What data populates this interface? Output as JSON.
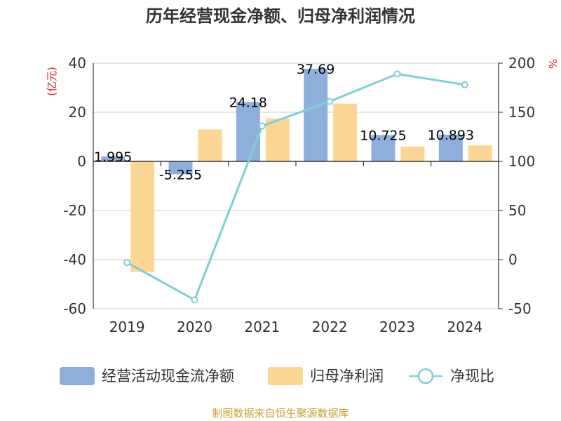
{
  "chart_data": {
    "type": "bar",
    "title": "历年经营现金净额、归母净利润情况",
    "categories": [
      "2019",
      "2020",
      "2021",
      "2022",
      "2023",
      "2024"
    ],
    "left_axis": {
      "unit": "(亿元)",
      "min": -60,
      "max": 40,
      "ticks": [
        "40",
        "20",
        "0",
        "-20",
        "-40",
        "-60"
      ]
    },
    "right_axis": {
      "unit": "%",
      "min": -50,
      "max": 200,
      "ticks": [
        "200",
        "150",
        "100",
        "50",
        "0",
        "-50"
      ]
    },
    "series": [
      {
        "name": "经营活动现金流净额",
        "type": "bar",
        "axis": "left",
        "color": "#8eaedc",
        "values": [
          1.995,
          -5.255,
          24.18,
          37.69,
          10.725,
          10.893
        ],
        "labels": [
          "1.995",
          "-5.255",
          "24.18",
          "37.69",
          "10.725",
          "10.893"
        ]
      },
      {
        "name": "归母净利润",
        "type": "bar",
        "axis": "left",
        "color": "#fdd693",
        "values": [
          -45,
          13,
          17.5,
          23.5,
          6,
          6.5
        ]
      },
      {
        "name": "净现比",
        "type": "line",
        "axis": "right",
        "color": "#7dd0d6",
        "values": [
          -3,
          -41,
          136,
          161,
          189,
          178
        ]
      }
    ],
    "grid": true,
    "legend": "bottom",
    "source": "制图数据来自恒生聚源数据库",
    "unit_color": "#e02020",
    "source_color": "#c8a032"
  }
}
